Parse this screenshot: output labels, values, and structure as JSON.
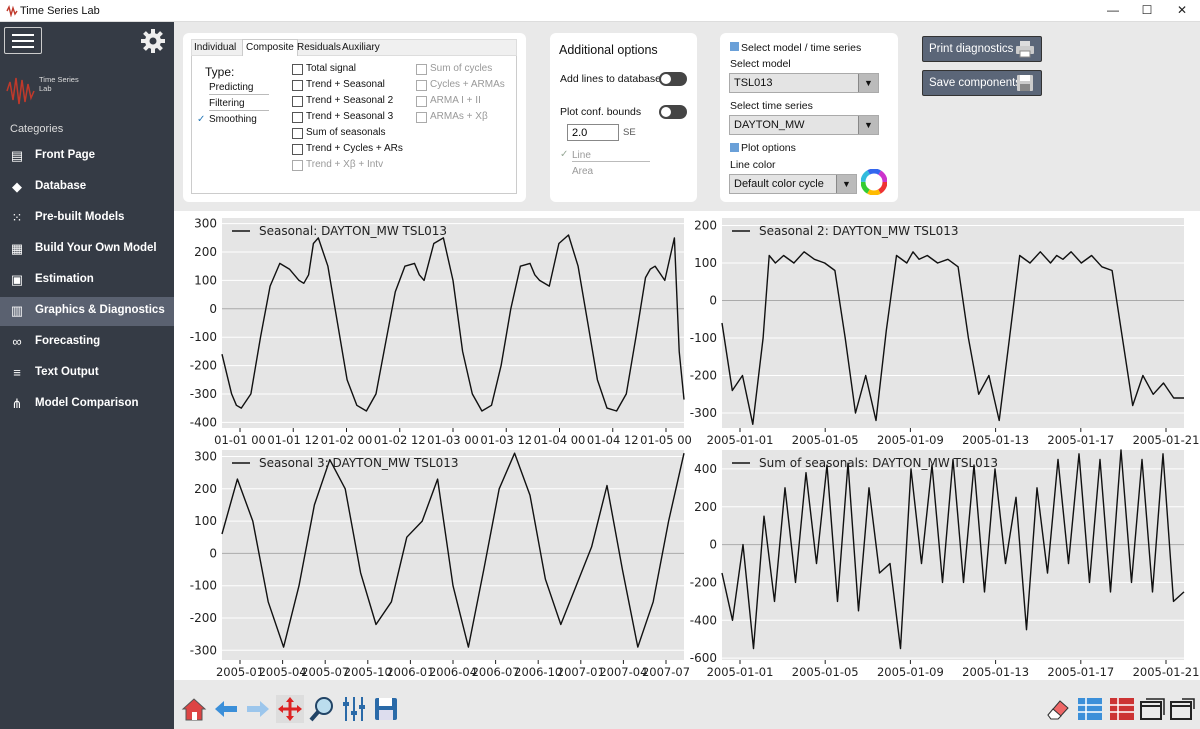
{
  "window": {
    "title": "Time Series Lab",
    "minimize": "—",
    "maximize": "☐",
    "close": "✕"
  },
  "sidebar": {
    "brand": "Time Series Lab",
    "categories_label": "Categories",
    "items": [
      {
        "label": "Front Page",
        "icon": "front-page-icon"
      },
      {
        "label": "Database",
        "icon": "database-icon"
      },
      {
        "label": "Pre-built Models",
        "icon": "grid-icon"
      },
      {
        "label": "Build Your Own Model",
        "icon": "build-icon"
      },
      {
        "label": "Estimation",
        "icon": "estimation-icon"
      },
      {
        "label": "Graphics & Diagnostics",
        "icon": "chart-icon",
        "active": true
      },
      {
        "label": "Forecasting",
        "icon": "binoculars-icon"
      },
      {
        "label": "Text Output",
        "icon": "text-output-icon"
      },
      {
        "label": "Model Comparison",
        "icon": "model-comparison-icon"
      }
    ]
  },
  "panel1": {
    "tabs": [
      "Individual",
      "Composite",
      "Residuals",
      "Auxiliary"
    ],
    "active_tab": "Composite",
    "type_label": "Type:",
    "types": [
      {
        "label": "Predicting",
        "checked": false
      },
      {
        "label": "Filtering",
        "checked": false
      },
      {
        "label": "Smoothing",
        "checked": true
      }
    ],
    "checkboxes_left": [
      {
        "label": "Total signal",
        "enabled": true
      },
      {
        "label": "Trend + Seasonal",
        "enabled": true
      },
      {
        "label": "Trend + Seasonal 2",
        "enabled": true
      },
      {
        "label": "Trend + Seasonal 3",
        "enabled": true
      },
      {
        "label": "Sum of seasonals",
        "enabled": true
      },
      {
        "label": "Trend + Cycles + ARs",
        "enabled": true
      },
      {
        "label": "Trend + Xβ + Intv",
        "enabled": false
      }
    ],
    "checkboxes_right": [
      {
        "label": "Sum of cycles",
        "enabled": false
      },
      {
        "label": "Cycles + ARMAs",
        "enabled": false
      },
      {
        "label": "ARMA I + II",
        "enabled": false
      },
      {
        "label": "ARMAs + Xβ",
        "enabled": false
      }
    ]
  },
  "panel2": {
    "title": "Additional options",
    "add_lines": "Add lines to database",
    "plot_conf": "Plot conf. bounds",
    "se_value": "2.0",
    "se_unit": "SE",
    "line": "Line",
    "area": "Area"
  },
  "panel3": {
    "select_header": "Select model / time series",
    "select_model_label": "Select model",
    "model": "TSL013",
    "select_series_label": "Select time series",
    "series": "DAYTON_MW",
    "plot_options": "Plot options",
    "line_color_label": "Line color",
    "line_color": "Default color cycle"
  },
  "buttons": {
    "print": "Print diagnostics",
    "save": "Save components"
  },
  "chart_data": [
    {
      "type": "line",
      "legend": "Seasonal: DAYTON_MW TSL013",
      "yticks": [
        300,
        200,
        100,
        0,
        -100,
        -200,
        -300,
        -400
      ],
      "ylim": [
        -420,
        320
      ],
      "xticks": [
        "01-01 00",
        "01-01 12",
        "01-02 00",
        "01-02 12",
        "01-03 00",
        "01-03 12",
        "01-04 00",
        "01-04 12",
        "01-05 00"
      ],
      "xlim": [
        0,
        96
      ],
      "x": [
        0,
        2,
        3,
        4,
        6,
        8,
        10,
        12,
        14,
        16,
        17,
        18,
        19,
        20,
        22,
        24,
        26,
        28,
        30,
        32,
        34,
        36,
        38,
        40,
        41,
        42,
        44,
        46,
        48,
        50,
        52,
        54,
        56,
        58,
        60,
        62,
        64,
        65,
        66,
        68,
        70,
        72,
        74,
        76,
        78,
        80,
        82,
        84,
        86,
        88,
        89,
        90,
        92,
        94,
        95,
        96
      ],
      "values": [
        -160,
        -300,
        -340,
        -350,
        -300,
        -100,
        80,
        160,
        140,
        100,
        90,
        120,
        230,
        250,
        150,
        -50,
        -250,
        -340,
        -360,
        -300,
        -120,
        60,
        150,
        160,
        120,
        100,
        230,
        250,
        100,
        -150,
        -300,
        -360,
        -340,
        -200,
        0,
        150,
        160,
        120,
        100,
        80,
        230,
        260,
        150,
        -50,
        -250,
        -350,
        -360,
        -300,
        -100,
        110,
        140,
        150,
        100,
        250,
        -150,
        -320
      ]
    },
    {
      "type": "line",
      "legend": "Seasonal 2: DAYTON_MW TSL013",
      "yticks": [
        200,
        100,
        0,
        -100,
        -200,
        -300
      ],
      "ylim": [
        -340,
        220
      ],
      "xticks": [
        "2005-01-01",
        "2005-01-05",
        "2005-01-09",
        "2005-01-13",
        "2005-01-17",
        "2005-01-21"
      ],
      "xlim": [
        0,
        22.5
      ],
      "x": [
        0,
        0.5,
        1,
        1.5,
        2,
        2.3,
        2.6,
        3,
        3.5,
        4,
        4.5,
        5,
        5.5,
        6,
        6.5,
        7,
        7.5,
        8,
        8.5,
        9,
        9.3,
        9.6,
        10,
        10.5,
        11,
        11.5,
        12,
        12.5,
        13,
        13.5,
        14,
        14.5,
        15,
        15.5,
        16,
        16.3,
        16.6,
        17,
        17.5,
        18,
        18.5,
        19,
        19.5,
        20,
        20.5,
        21,
        21.5,
        22,
        22.5
      ],
      "values": [
        -60,
        -240,
        -200,
        -330,
        -100,
        120,
        100,
        120,
        100,
        130,
        110,
        100,
        80,
        -100,
        -300,
        -200,
        -320,
        -80,
        120,
        100,
        130,
        110,
        120,
        100,
        110,
        90,
        -100,
        -250,
        -200,
        -320,
        -100,
        120,
        100,
        130,
        100,
        120,
        110,
        130,
        100,
        120,
        90,
        80,
        -100,
        -280,
        -200,
        -250,
        -220,
        -260,
        -260
      ]
    },
    {
      "type": "line",
      "legend": "Seasonal 3: DAYTON_MW TSL013",
      "yticks": [
        300,
        200,
        100,
        0,
        -100,
        -200,
        -300
      ],
      "ylim": [
        -330,
        320
      ],
      "xticks": [
        "2005-01",
        "2005-04",
        "2005-07",
        "2005-10",
        "2006-01",
        "2006-04",
        "2006-07",
        "2006-10",
        "2007-01",
        "2007-04",
        "2007-07"
      ],
      "xlim": [
        0,
        30
      ],
      "x": [
        0,
        1,
        2,
        3,
        4,
        5,
        6,
        7,
        8,
        9,
        10,
        11,
        12,
        13,
        14,
        15,
        16,
        17,
        18,
        19,
        20,
        21,
        22,
        23,
        24,
        25,
        26,
        27,
        28,
        29,
        30
      ],
      "values": [
        60,
        230,
        100,
        -150,
        -290,
        -100,
        150,
        290,
        200,
        -60,
        -220,
        -150,
        50,
        100,
        230,
        -100,
        -290,
        -50,
        200,
        310,
        180,
        -80,
        -220,
        -100,
        20,
        210,
        -50,
        -290,
        -150,
        100,
        310
      ]
    },
    {
      "type": "line",
      "legend": "Sum of seasonals: DAYTON_MW TSL013",
      "yticks": [
        400,
        200,
        0,
        -200,
        -400,
        -600
      ],
      "ylim": [
        -610,
        500
      ],
      "xticks": [
        "2005-01-01",
        "2005-01-05",
        "2005-01-09",
        "2005-01-13",
        "2005-01-17",
        "2005-01-21"
      ],
      "xlim": [
        0,
        22
      ],
      "x": [
        0,
        0.5,
        1,
        1.5,
        2,
        2.5,
        3,
        3.5,
        4,
        4.5,
        5,
        5.5,
        6,
        6.5,
        7,
        7.5,
        8,
        8.5,
        9,
        9.5,
        10,
        10.5,
        11,
        11.5,
        12,
        12.5,
        13,
        13.5,
        14,
        14.5,
        15,
        15.5,
        16,
        16.5,
        17,
        17.5,
        18,
        18.5,
        19,
        19.5,
        20,
        20.5,
        21,
        21.5,
        22
      ],
      "values": [
        -150,
        -400,
        0,
        -550,
        150,
        -300,
        300,
        -200,
        380,
        -100,
        420,
        -300,
        430,
        -350,
        300,
        -150,
        -100,
        -550,
        400,
        -100,
        420,
        -200,
        450,
        -200,
        420,
        -250,
        400,
        -100,
        250,
        -450,
        300,
        -150,
        450,
        -100,
        480,
        -200,
        450,
        -250,
        500,
        -200,
        450,
        -250,
        480,
        -300,
        -250
      ]
    }
  ]
}
